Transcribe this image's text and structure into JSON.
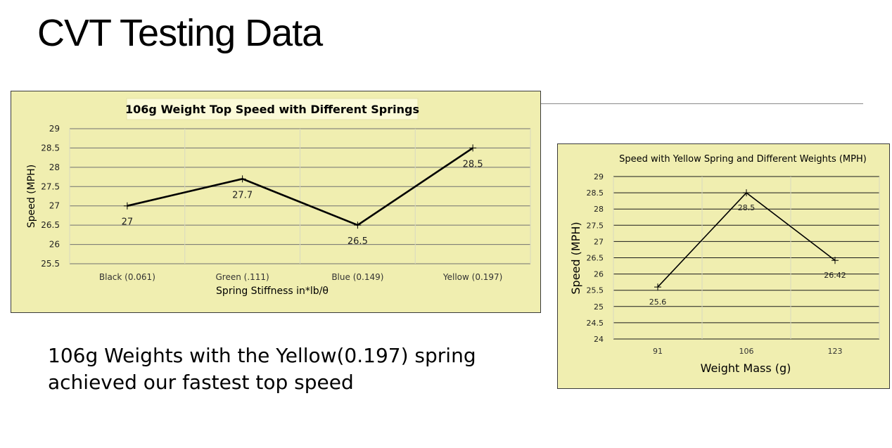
{
  "slide": {
    "title": "CVT Testing Data",
    "summary_line1": "106g Weights with the Yellow(0.197) spring",
    "summary_line2": "achieved our fastest top speed"
  },
  "colors": {
    "panel_bg": "#f0eeb0",
    "line": "#000000",
    "grid": "#404040"
  },
  "chart_data": [
    {
      "type": "line",
      "title": "106g Weight Top Speed with Different Springs",
      "xlabel": "Spring Stiffness in*lb/θ",
      "ylabel": "Speed (MPH)",
      "categories": [
        "Black (0.061)",
        "Green (.111)",
        "Blue (0.149)",
        "Yellow (0.197)"
      ],
      "values": [
        27,
        27.7,
        26.5,
        28.5
      ],
      "data_labels": [
        "27",
        "27.7",
        "26.5",
        "28.5"
      ],
      "ylim": [
        25.5,
        29
      ],
      "yticks": [
        "25.5",
        "26",
        "26.5",
        "27",
        "27.5",
        "28",
        "28.5",
        "29"
      ],
      "grid": "major horizontal and vertical",
      "legend": "none"
    },
    {
      "type": "line",
      "title": "Speed with Yellow Spring and Different Weights (MPH)",
      "xlabel": "Weight Mass (g)",
      "ylabel": "Speed (MPH)",
      "categories": [
        "91",
        "106",
        "123"
      ],
      "values": [
        25.6,
        28.5,
        26.42
      ],
      "data_labels": [
        "25.6",
        "28.5",
        "26.42"
      ],
      "ylim": [
        24,
        29
      ],
      "yticks": [
        "24",
        "24.5",
        "25",
        "25.5",
        "26",
        "26.5",
        "27",
        "27.5",
        "28",
        "28.5",
        "29"
      ],
      "grid": "major horizontal and vertical",
      "legend": "none"
    }
  ]
}
